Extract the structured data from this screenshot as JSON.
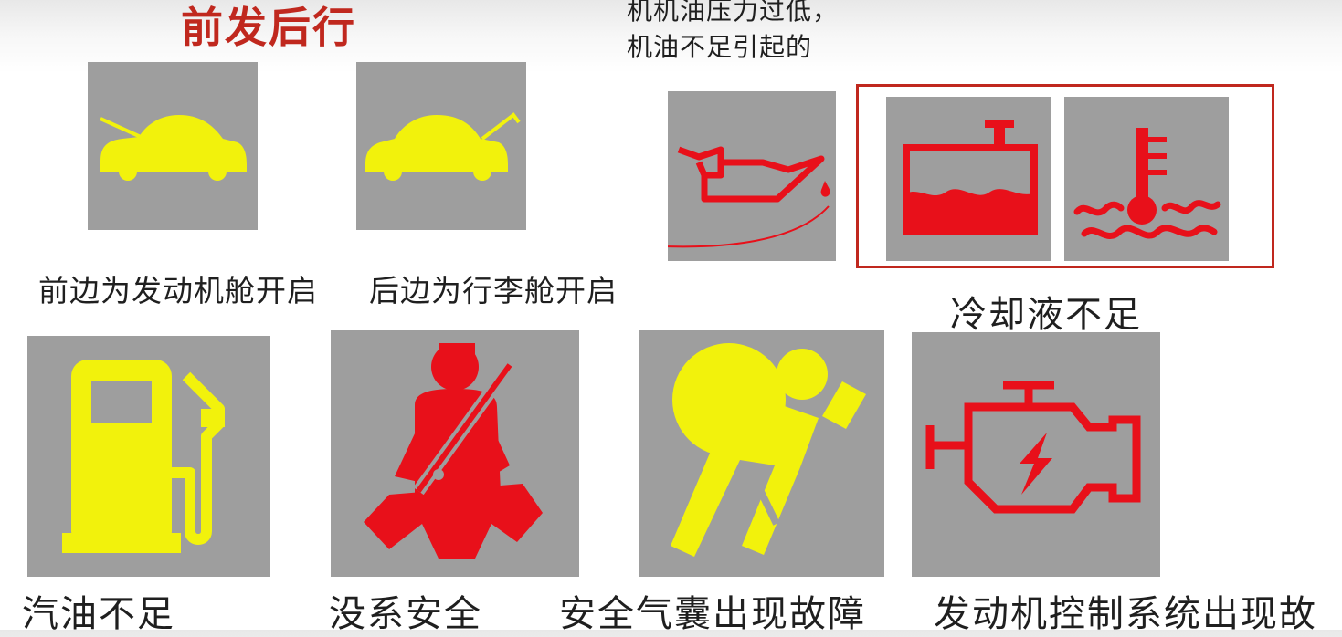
{
  "heading": "前发后行",
  "oil_note": {
    "line1": "机机油压力过低，",
    "line2": "机油不足引起的"
  },
  "captions": {
    "hood_open": "前边为发动机舱开启",
    "trunk_open": "后边为行李舱开启",
    "coolant_low": "冷却液不足",
    "fuel_low": "汽油不足",
    "seatbelt": "没系安全",
    "airbag": "安全气囊出现故障",
    "engine": "发动机控制系统出现故"
  },
  "icons": [
    "car-hood-open-icon",
    "car-trunk-open-icon",
    "oil-can-icon",
    "coolant-reservoir-icon",
    "coolant-temperature-icon",
    "fuel-pump-icon",
    "seatbelt-icon",
    "airbag-icon",
    "check-engine-icon"
  ],
  "colors": {
    "warning_red": "#e8101a",
    "caution_yellow": "#f2f20c",
    "tile_gray": "#9e9e9e",
    "heading_red": "#c0281e"
  }
}
